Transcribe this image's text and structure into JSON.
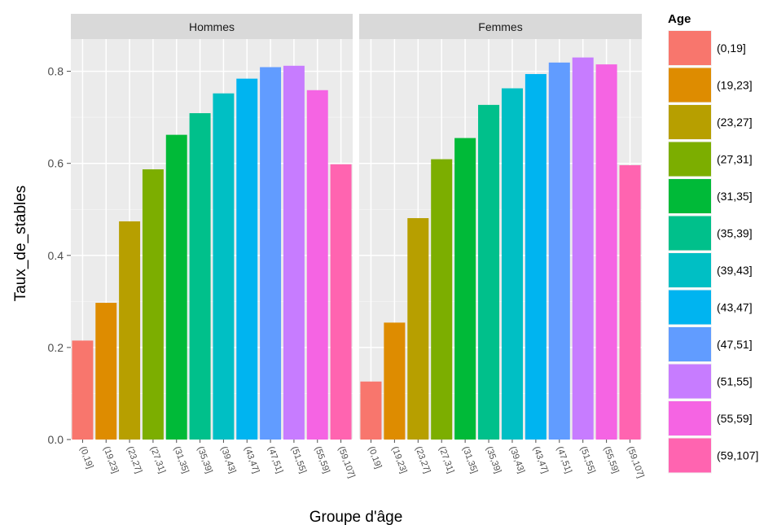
{
  "chart_data": {
    "type": "bar",
    "ylabel": "Taux_de_stables",
    "xlabel": "Groupe d'âge",
    "ylim": [
      0,
      0.87
    ],
    "yticks": [
      "0.0",
      "0.2",
      "0.4",
      "0.6",
      "0.8"
    ],
    "grid": true,
    "legend_position": "right",
    "legend_title": "Age",
    "categories": [
      "(0,19]",
      "(19,23]",
      "(23,27]",
      "(27,31]",
      "(31,35]",
      "(35,39]",
      "(39,43]",
      "(43,47]",
      "(47,51]",
      "(51,55]",
      "(55,59]",
      "(59,107]"
    ],
    "colors": [
      "#F8766D",
      "#DE8C00",
      "#B79F00",
      "#7CAE00",
      "#00BA38",
      "#00C08B",
      "#00BFC4",
      "#00B4F0",
      "#619CFF",
      "#C77CFF",
      "#F564E3",
      "#FF64B0"
    ],
    "facets": [
      {
        "label": "Hommes",
        "values": [
          0.215,
          0.297,
          0.474,
          0.587,
          0.662,
          0.709,
          0.752,
          0.784,
          0.809,
          0.812,
          0.759,
          0.598
        ]
      },
      {
        "label": "Femmes",
        "values": [
          0.126,
          0.254,
          0.481,
          0.609,
          0.655,
          0.727,
          0.763,
          0.794,
          0.819,
          0.83,
          0.815,
          0.596
        ]
      }
    ]
  }
}
